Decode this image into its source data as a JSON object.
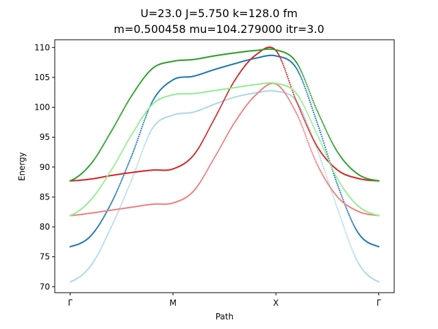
{
  "chart_data": {
    "type": "scatter",
    "title_line1": "U=23.0 J=5.750 k=128.0  fm",
    "title_line2": "m=0.500458 mu=104.279000 itr=3.0",
    "xlabel": "Path",
    "ylabel": "Energy",
    "xlim": [
      -0.15,
      3.15
    ],
    "ylim": [
      69.0,
      111.3
    ],
    "x_ticks": [
      {
        "value": 0,
        "label": "Γ"
      },
      {
        "value": 1,
        "label": "M"
      },
      {
        "value": 2,
        "label": "X"
      },
      {
        "value": 3,
        "label": "Γ"
      }
    ],
    "y_ticks": [
      70,
      75,
      80,
      85,
      90,
      95,
      100,
      105,
      110
    ],
    "grid": false,
    "series": [
      {
        "color": "#add8e6",
        "points": [
          [
            0,
            70.8
          ],
          [
            0.2,
            73.5
          ],
          [
            0.4,
            80.0
          ],
          [
            0.6,
            88.0
          ],
          [
            0.8,
            96.5
          ],
          [
            1.0,
            98.7
          ],
          [
            1.2,
            99.2
          ],
          [
            1.4,
            100.5
          ],
          [
            1.6,
            101.7
          ],
          [
            1.8,
            102.4
          ],
          [
            2.0,
            102.7
          ],
          [
            2.2,
            101.0
          ],
          [
            2.4,
            93.0
          ],
          [
            2.6,
            83.0
          ],
          [
            2.8,
            74.0
          ],
          [
            3.0,
            70.8
          ]
        ]
      },
      {
        "color": "#1f77b4",
        "points": [
          [
            0,
            76.7
          ],
          [
            0.2,
            78.5
          ],
          [
            0.4,
            84.0
          ],
          [
            0.6,
            92.0
          ],
          [
            0.8,
            101.0
          ],
          [
            1.0,
            104.6
          ],
          [
            1.2,
            105.2
          ],
          [
            1.4,
            106.3
          ],
          [
            1.6,
            107.3
          ],
          [
            1.8,
            108.2
          ],
          [
            2.0,
            108.6
          ],
          [
            2.2,
            106.5
          ],
          [
            2.4,
            97.5
          ],
          [
            2.6,
            87.0
          ],
          [
            2.8,
            79.0
          ],
          [
            3.0,
            76.7
          ]
        ]
      },
      {
        "color": "#f08080",
        "points": [
          [
            0,
            81.9
          ],
          [
            0.2,
            82.3
          ],
          [
            0.4,
            82.8
          ],
          [
            0.6,
            83.3
          ],
          [
            0.8,
            83.8
          ],
          [
            1.0,
            84.0
          ],
          [
            1.2,
            86.0
          ],
          [
            1.4,
            91.5
          ],
          [
            1.6,
            97.5
          ],
          [
            1.8,
            102.0
          ],
          [
            2.0,
            103.9
          ],
          [
            2.2,
            99.0
          ],
          [
            2.4,
            90.5
          ],
          [
            2.6,
            85.0
          ],
          [
            2.8,
            82.6
          ],
          [
            3.0,
            81.9
          ]
        ]
      },
      {
        "color": "#d62728",
        "points": [
          [
            0,
            87.7
          ],
          [
            0.2,
            88.0
          ],
          [
            0.4,
            88.6
          ],
          [
            0.6,
            89.1
          ],
          [
            0.8,
            89.5
          ],
          [
            1.0,
            89.7
          ],
          [
            1.2,
            92.0
          ],
          [
            1.4,
            98.0
          ],
          [
            1.6,
            104.5
          ],
          [
            1.8,
            108.7
          ],
          [
            2.0,
            109.5
          ],
          [
            2.2,
            101.0
          ],
          [
            2.4,
            93.5
          ],
          [
            2.6,
            89.5
          ],
          [
            2.8,
            88.1
          ],
          [
            3.0,
            87.7
          ]
        ]
      },
      {
        "color": "#90ee90",
        "points": [
          [
            0,
            81.9
          ],
          [
            0.2,
            84.5
          ],
          [
            0.4,
            89.5
          ],
          [
            0.6,
            95.5
          ],
          [
            0.8,
            100.5
          ],
          [
            1.0,
            102.1
          ],
          [
            1.2,
            102.3
          ],
          [
            1.4,
            102.8
          ],
          [
            1.6,
            103.3
          ],
          [
            1.8,
            103.8
          ],
          [
            2.0,
            104.0
          ],
          [
            2.2,
            102.3
          ],
          [
            2.4,
            95.5
          ],
          [
            2.6,
            88.0
          ],
          [
            2.8,
            83.5
          ],
          [
            3.0,
            81.9
          ]
        ]
      },
      {
        "color": "#2ca02c",
        "points": [
          [
            0,
            87.7
          ],
          [
            0.2,
            90.5
          ],
          [
            0.4,
            96.0
          ],
          [
            0.6,
            102.0
          ],
          [
            0.8,
            106.5
          ],
          [
            1.0,
            107.7
          ],
          [
            1.2,
            108.0
          ],
          [
            1.4,
            108.6
          ],
          [
            1.6,
            109.1
          ],
          [
            1.8,
            109.5
          ],
          [
            2.0,
            109.6
          ],
          [
            2.2,
            107.5
          ],
          [
            2.4,
            99.5
          ],
          [
            2.6,
            92.5
          ],
          [
            2.8,
            88.8
          ],
          [
            3.0,
            87.7
          ]
        ]
      }
    ]
  }
}
